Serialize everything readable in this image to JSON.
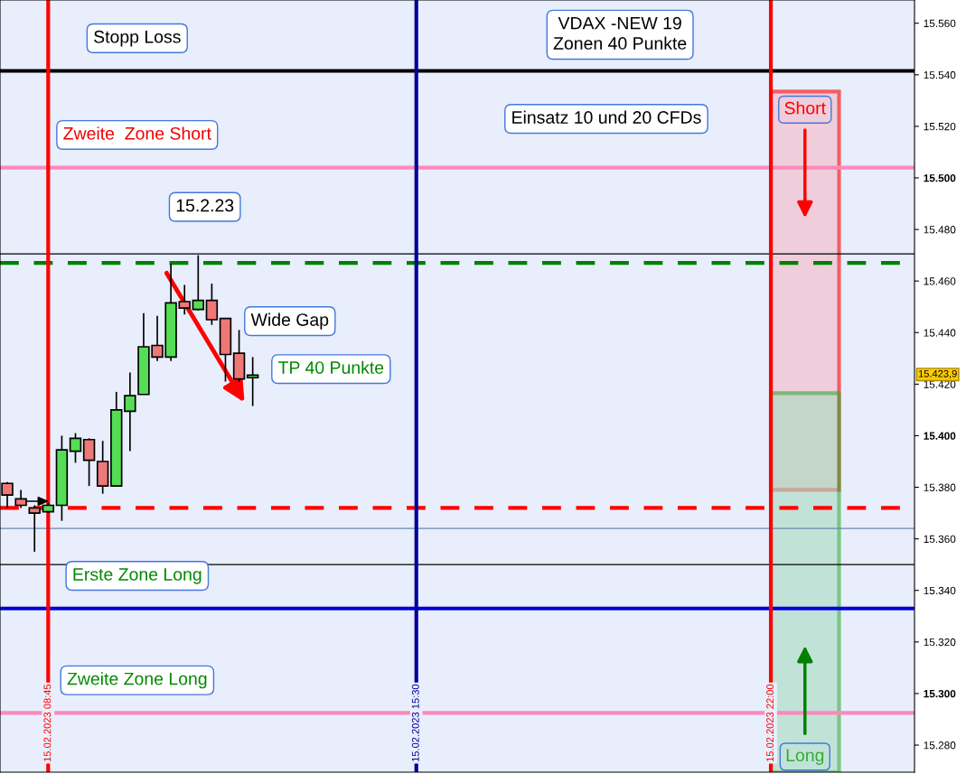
{
  "chart_data": {
    "type": "candlestick",
    "x": [
      "2023-02-15T08:00",
      "2023-02-15T08:15",
      "2023-02-15T08:30",
      "2023-02-15T08:45",
      "2023-02-15T09:00",
      "2023-02-15T09:15",
      "2023-02-15T09:30",
      "2023-02-15T09:45",
      "2023-02-15T10:00",
      "2023-02-15T10:15",
      "2023-02-15T10:30",
      "2023-02-15T10:45",
      "2023-02-15T11:00",
      "2023-02-15T11:15",
      "2023-02-15T11:30",
      "2023-02-15T11:45",
      "2023-02-15T12:00",
      "2023-02-15T12:15",
      "2023-02-15T12:30"
    ],
    "ohlc": [
      [
        15381.5,
        15382,
        15372,
        15377
      ],
      [
        15375.5,
        15379,
        15372,
        15373
      ],
      [
        15372,
        15373,
        15355,
        15370
      ],
      [
        15370.5,
        15374,
        15370,
        15373
      ],
      [
        15373,
        15400,
        15367,
        15394.5
      ],
      [
        15394,
        15401,
        15389.5,
        15399
      ],
      [
        15398.5,
        15399,
        15380.5,
        15390.5
      ],
      [
        15390,
        15398,
        15377.5,
        15380.5
      ],
      [
        15380.5,
        15417,
        15380.5,
        15410
      ],
      [
        15409.5,
        15424.5,
        15394,
        15415.5
      ],
      [
        15416,
        15447.5,
        15416,
        15434.5
      ],
      [
        15435,
        15446.5,
        15429,
        15430.5
      ],
      [
        15430.5,
        15466.5,
        15429,
        15451.5
      ],
      [
        15452,
        15458.5,
        15447,
        15449.5
      ],
      [
        15449,
        15470,
        15448.5,
        15452.5
      ],
      [
        15452.5,
        15459,
        15443,
        15445
      ],
      [
        15445.5,
        15445.5,
        15421,
        15431.5
      ],
      [
        15432,
        15441,
        15421,
        15422
      ],
      [
        15422.5,
        15430.5,
        15411.5,
        15423.5
      ]
    ],
    "xlim": [
      "2023-02-15T07:52",
      "2023-02-16T00:38"
    ],
    "ylim": [
      15269.5,
      15569
    ],
    "yticks": [
      {
        "value": 15280,
        "label": "15.280"
      },
      {
        "value": 15300,
        "label": "15.300"
      },
      {
        "value": 15320,
        "label": "15.320"
      },
      {
        "value": 15340,
        "label": "15.340"
      },
      {
        "value": 15360,
        "label": "15.360"
      },
      {
        "value": 15380,
        "label": "15.380"
      },
      {
        "value": 15400,
        "label": "15.400"
      },
      {
        "value": 15420,
        "label": "15.420"
      },
      {
        "value": 15440,
        "label": "15.440"
      },
      {
        "value": 15460,
        "label": "15.460"
      },
      {
        "value": 15480,
        "label": "15.480"
      },
      {
        "value": 15500,
        "label": "15.500"
      },
      {
        "value": 15520,
        "label": "15.520"
      },
      {
        "value": 15540,
        "label": "15.540"
      },
      {
        "value": 15560,
        "label": "15.560"
      }
    ],
    "xticks": [
      {
        "value": "2023-02-15T08:45",
        "label": "15.02.2023 08:45"
      },
      {
        "value": "2023-02-15T15:30",
        "label": "15.02.2023 15:30"
      },
      {
        "value": "2023-02-15T22:00",
        "label": "15.02.2023 22:00"
      }
    ],
    "ref_lines": [
      {
        "axis": "y",
        "value": 15541.5,
        "label": "Stopp Loss",
        "color": "#000000"
      },
      {
        "axis": "y",
        "value": 15504,
        "label": "Zweite  Zone Short",
        "color": "#ff88bb"
      },
      {
        "axis": "y",
        "value": 15470.5,
        "color": "#000000"
      },
      {
        "axis": "y",
        "value": 15467,
        "color": "#008000",
        "line_style": "dashed"
      },
      {
        "axis": "y",
        "value": 15372,
        "color": "#ff0000",
        "line_style": "dashed"
      },
      {
        "axis": "y",
        "value": 15364,
        "color": "#6688aa"
      },
      {
        "axis": "y",
        "value": 15350,
        "color": "#000000"
      },
      {
        "axis": "y",
        "value": 15333,
        "label": "Erste Zone Long",
        "color": "#0000dd"
      },
      {
        "axis": "y",
        "value": 15292.5,
        "label": "Zweite Zone Long",
        "color": "#ff88bb"
      },
      {
        "axis": "x",
        "value": "2023-02-15T08:45",
        "color": "#ff0000"
      },
      {
        "axis": "x",
        "value": "2023-02-15T15:30",
        "color": "#000099"
      },
      {
        "axis": "x",
        "value": "2023-02-15T22:00",
        "color": "#ff0000"
      }
    ],
    "bands": [
      {
        "axis": "y",
        "from": 15379,
        "to": 15533.5,
        "label": "Short",
        "color": "#ff0000"
      },
      {
        "axis": "y",
        "from": 15269.5,
        "to": 15416.5,
        "label": "Long",
        "color": "#33aa33"
      }
    ],
    "annotations": [
      "VDAX -NEW 19\nZonen 40 Punkte",
      "Einsatz 10 und 20 CFDs",
      "15.2.23",
      "Wide Gap",
      "TP 40 Punkte",
      "15.423,9"
    ],
    "grid": false,
    "legend": false
  }
}
